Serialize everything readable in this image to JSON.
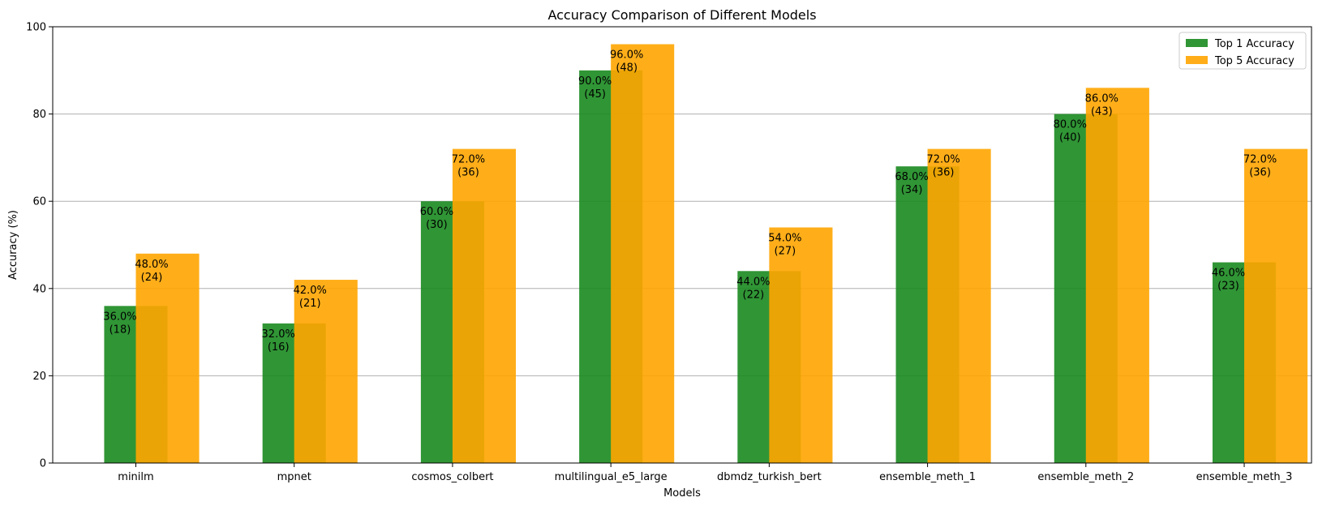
{
  "chart_data": {
    "type": "bar",
    "title": "Accuracy Comparison of Different Models",
    "xlabel": "Models",
    "ylabel": "Accuracy (%)",
    "categories": [
      "minilm",
      "mpnet",
      "cosmos_colbert",
      "multilingual_e5_large",
      "dbmdz_turkish_bert",
      "ensemble_meth_1",
      "ensemble_meth_2",
      "ensemble_meth_3"
    ],
    "series": [
      {
        "name": "Top 1 Accuracy",
        "color": "#1a8a1f",
        "values": [
          36.0,
          32.0,
          60.0,
          90.0,
          44.0,
          68.0,
          80.0,
          46.0
        ],
        "labels": [
          "36.0%",
          "32.0%",
          "60.0%",
          "90.0%",
          "44.0%",
          "68.0%",
          "80.0%",
          "46.0%"
        ],
        "counts": [
          "(18)",
          "(16)",
          "(30)",
          "(45)",
          "(22)",
          "(34)",
          "(40)",
          "(23)"
        ]
      },
      {
        "name": "Top 5 Accuracy",
        "color": "#ffa500",
        "values": [
          48.0,
          42.0,
          72.0,
          96.0,
          54.0,
          72.0,
          86.0,
          72.0
        ],
        "labels": [
          "48.0%",
          "42.0%",
          "72.0%",
          "96.0%",
          "54.0%",
          "72.0%",
          "86.0%",
          "72.0%"
        ],
        "counts": [
          "(24)",
          "(21)",
          "(36)",
          "(48)",
          "(27)",
          "(36)",
          "(43)",
          "(36)"
        ]
      }
    ],
    "ylim": [
      0,
      100
    ],
    "yticks": [
      0,
      20,
      40,
      60,
      80,
      100
    ],
    "grid": "horizontal",
    "legend": "top-right"
  }
}
